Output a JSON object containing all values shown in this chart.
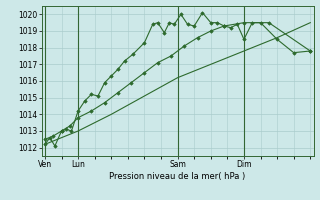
{
  "bg_color": "#cde8e8",
  "grid_color": "#aacccc",
  "line_color": "#2d6a2d",
  "marker_color": "#2d6a2d",
  "title": "Pression niveau de la mer( hPa )",
  "ylim": [
    1011.5,
    1020.5
  ],
  "yticks": [
    1012,
    1013,
    1014,
    1015,
    1016,
    1017,
    1018,
    1019,
    1020
  ],
  "xlim": [
    -0.2,
    16.2
  ],
  "xtick_labels": [
    "Ven",
    "Lun",
    "Sam",
    "Dim"
  ],
  "xtick_positions": [
    0,
    2,
    8,
    12
  ],
  "vline_positions": [
    0,
    2,
    8,
    12
  ],
  "line1_x": [
    0.0,
    0.3,
    0.6,
    1.0,
    1.3,
    1.6,
    2.0,
    2.4,
    2.8,
    3.2,
    3.6,
    4.0,
    4.4,
    4.8,
    5.3,
    6.0,
    6.5,
    6.8,
    7.2,
    7.5,
    7.8,
    8.2,
    8.6,
    9.0,
    9.5,
    10.0,
    10.4,
    10.8,
    11.2,
    11.6,
    12.0,
    12.5,
    13.0,
    14.0,
    15.0,
    16.0
  ],
  "line1_y": [
    1012.2,
    1012.6,
    1012.1,
    1013.0,
    1013.1,
    1013.0,
    1014.2,
    1014.8,
    1015.2,
    1015.1,
    1015.9,
    1016.3,
    1016.7,
    1017.2,
    1017.6,
    1018.3,
    1019.4,
    1019.5,
    1018.9,
    1019.5,
    1019.4,
    1020.0,
    1019.4,
    1019.3,
    1020.1,
    1019.5,
    1019.5,
    1019.3,
    1019.2,
    1019.4,
    1018.5,
    1019.5,
    1019.5,
    1018.5,
    1017.7,
    1017.8
  ],
  "line2_x": [
    0.0,
    0.5,
    1.0,
    1.5,
    2.0,
    2.8,
    3.6,
    4.4,
    5.2,
    6.0,
    6.8,
    7.6,
    8.4,
    9.2,
    10.0,
    10.8,
    12.0,
    13.5,
    16.0
  ],
  "line2_y": [
    1012.5,
    1012.7,
    1013.0,
    1013.3,
    1013.8,
    1014.2,
    1014.7,
    1015.3,
    1015.9,
    1016.5,
    1017.1,
    1017.5,
    1018.1,
    1018.6,
    1019.0,
    1019.3,
    1019.5,
    1019.5,
    1017.8
  ],
  "line3_x": [
    0.0,
    2.0,
    4.0,
    6.0,
    8.0,
    10.0,
    12.0,
    14.0,
    16.0
  ],
  "line3_y": [
    1012.2,
    1013.0,
    1014.0,
    1015.1,
    1016.2,
    1017.0,
    1017.8,
    1018.6,
    1019.5
  ]
}
